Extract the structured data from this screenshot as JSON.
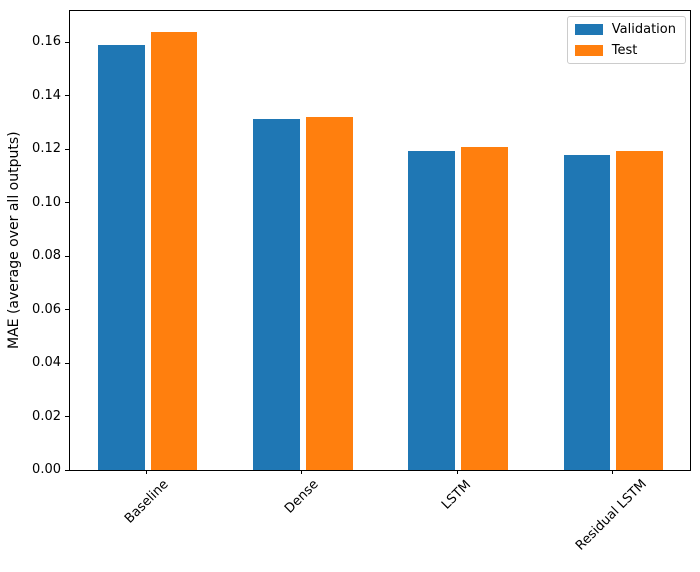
{
  "chart_data": {
    "type": "bar",
    "title": "",
    "xlabel": "",
    "ylabel": "MAE (average over all outputs)",
    "categories": [
      "Baseline",
      "Dense",
      "LSTM",
      "Residual LSTM"
    ],
    "series": [
      {
        "name": "Validation",
        "color": "#1f77b4",
        "values": [
          0.1589,
          0.1311,
          0.1194,
          0.1178
        ]
      },
      {
        "name": "Test",
        "color": "#ff7f0e",
        "values": [
          0.1638,
          0.132,
          0.1209,
          0.1193
        ]
      }
    ],
    "ylim": [
      0,
      0.172
    ],
    "xlim": [
      -0.502,
      3.502
    ],
    "yticks": [
      0.0,
      0.02,
      0.04,
      0.06,
      0.08,
      0.1,
      0.12,
      0.14,
      0.16
    ],
    "ytick_labels": [
      "0.00",
      "0.02",
      "0.04",
      "0.06",
      "0.08",
      "0.10",
      "0.12",
      "0.14",
      "0.16"
    ],
    "bar_width": 0.3,
    "bar_offset": 0.17,
    "xtick_rotation": 45,
    "grid": false,
    "legend_position": "upper right",
    "axis_color": "#000000",
    "legend_border_color": "#cccccc",
    "background_color": "#ffffff"
  }
}
